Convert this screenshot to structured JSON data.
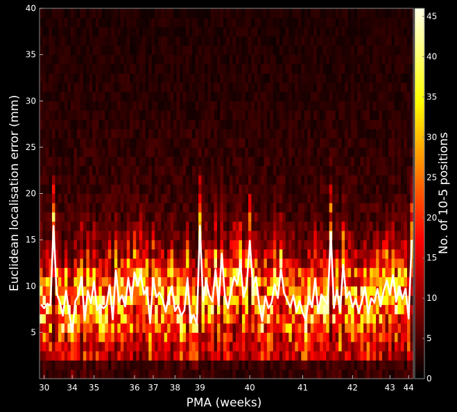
{
  "chart_data": {
    "type": "heatmap",
    "title": "",
    "xlabel": "PMA (weeks)",
    "ylabel": "Euclidean localisation error (mm)",
    "colorbar_label": "No. of 10-5 positions",
    "colormap": "hot",
    "background_color": "#000000",
    "line_color": "#ffffff",
    "ylim": [
      0,
      40
    ],
    "y_ticks": [
      5,
      10,
      15,
      20,
      25,
      30,
      35,
      40
    ],
    "x_ticks": [
      "30",
      "34",
      "35",
      "36",
      "37",
      "38",
      "39",
      "40",
      "41",
      "42",
      "43",
      "44"
    ],
    "x_tick_subject_index": [
      1,
      10,
      17,
      30,
      36,
      43,
      51,
      67,
      84,
      100,
      112,
      118
    ],
    "n_subjects": 120,
    "colorbar_range": [
      0,
      46
    ],
    "colorbar_ticks": [
      0,
      5,
      10,
      15,
      20,
      25,
      30,
      35,
      40,
      45
    ],
    "heatmap_bin_size_mm": 1,
    "mean_error_series": {
      "description": "white line: per-subject mean localisation error (mm)",
      "y": [
        8.0,
        7.6,
        8.1,
        7.9,
        16.5,
        9.2,
        8.3,
        6.8,
        9.5,
        7.2,
        5.1,
        8.4,
        9.0,
        11.0,
        6.3,
        9.5,
        8.1,
        10.5,
        7.4,
        8.0,
        7.6,
        7.9,
        10.1,
        6.4,
        11.7,
        8.3,
        9.0,
        7.8,
        10.9,
        8.5,
        11.5,
        10.0,
        11.2,
        9.1,
        9.8,
        6.0,
        10.8,
        8.8,
        9.3,
        8.6,
        7.2,
        8.9,
        10.0,
        7.3,
        7.9,
        6.8,
        7.4,
        10.9,
        6.2,
        6.9,
        5.9,
        16.5,
        8.4,
        10.6,
        9.0,
        8.3,
        11.8,
        7.9,
        13.5,
        9.0,
        7.6,
        9.5,
        11.0,
        10.2,
        12.4,
        8.8,
        10.0,
        14.9,
        9.9,
        11.0,
        8.0,
        6.2,
        8.9,
        7.6,
        8.2,
        10.2,
        8.7,
        11.8,
        9.3,
        8.5,
        7.7,
        9.0,
        7.2,
        8.4,
        7.1,
        6.3,
        8.9,
        7.7,
        10.8,
        7.2,
        9.1,
        8.5,
        8.0,
        15.8,
        7.6,
        9.6,
        7.2,
        12.3,
        8.7,
        9.4,
        7.7,
        8.6,
        7.1,
        8.4,
        9.9,
        7.0,
        8.7,
        8.2,
        9.7,
        7.8,
        9.5,
        10.6,
        9.1,
        11.2,
        8.3,
        10.0,
        8.6,
        9.7,
        6.5,
        15.0
      ]
    }
  }
}
